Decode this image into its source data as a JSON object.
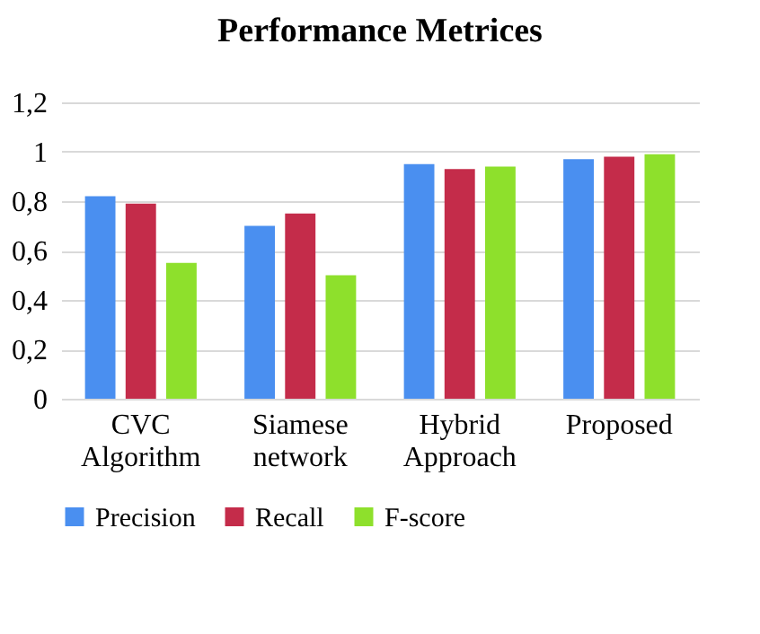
{
  "chart_data": {
    "type": "bar",
    "title": "Performance Metrices",
    "categories": [
      "CVC Algorithm",
      "Siamese network",
      "Hybrid Approach",
      "Proposed"
    ],
    "series": [
      {
        "name": "Precision",
        "color": "#4a8ff0",
        "values": [
          0.82,
          0.7,
          0.95,
          0.97
        ]
      },
      {
        "name": "Recall",
        "color": "#c42c4a",
        "values": [
          0.79,
          0.75,
          0.93,
          0.98
        ]
      },
      {
        "name": "F-score",
        "color": "#8ee02c",
        "values": [
          0.55,
          0.5,
          0.94,
          0.99
        ]
      }
    ],
    "ylim": [
      0,
      1.2
    ],
    "yticks": [
      0,
      {
        "value": 0.2,
        "label": "0,2"
      },
      {
        "value": 0.4,
        "label": "0,4"
      },
      {
        "value": 0.6,
        "label": "0,6"
      },
      {
        "value": 0.8,
        "label": "0,8"
      },
      1,
      {
        "value": 1.2,
        "label": "1,2"
      }
    ],
    "grid": "y",
    "legend": "bottom"
  }
}
